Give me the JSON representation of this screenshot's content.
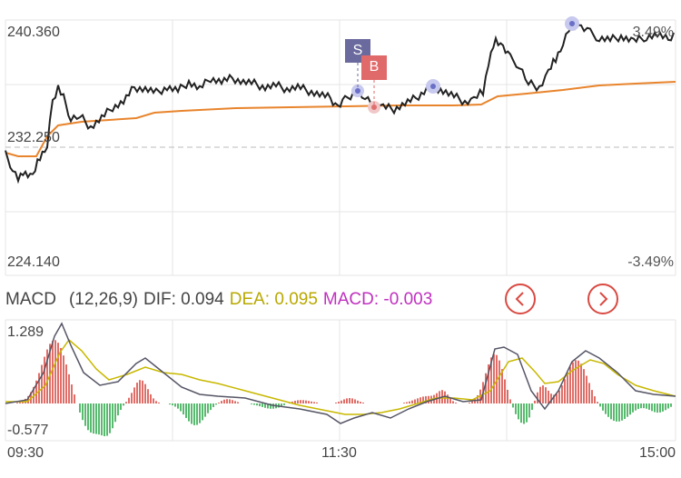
{
  "price_chart": {
    "price_high": "240.360",
    "price_mid": "232.250",
    "price_low": "224.140",
    "pct_high": "3.49%",
    "pct_low": "-3.49%",
    "sell_marker": "S",
    "buy_marker": "B",
    "colors": {
      "price_line": "#222222",
      "avg_line": "#e8842c",
      "sell": "#6b6a9e",
      "buy": "#e06a6a",
      "event_dot": "#9aa0e0"
    }
  },
  "macd": {
    "name": "MACD",
    "params": "(12,26,9)",
    "dif_label": "DIF: 0.094",
    "dea_label": "DEA: 0.095",
    "macd_label": "MACD: -0.003",
    "axis_max": "1.289",
    "axis_min": "-0.577",
    "colors": {
      "dif": "#555566",
      "dea": "#c8b800",
      "macd_label": "#c030c0",
      "up_bar": "#d94a42",
      "down_bar": "#2ea84a"
    }
  },
  "time_axis": {
    "start": "09:30",
    "mid": "11:30",
    "end": "15:00"
  },
  "nav": {
    "prev_icon": "chevron-left-icon",
    "next_icon": "chevron-right-icon"
  }
}
